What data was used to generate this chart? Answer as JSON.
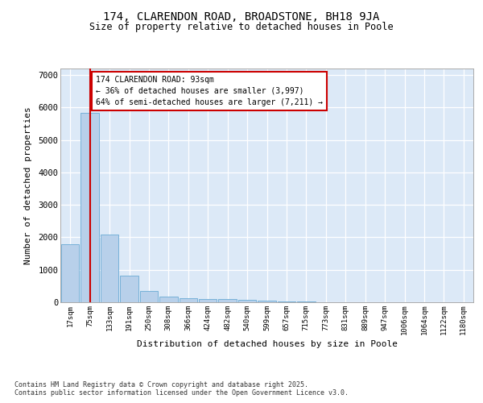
{
  "title_line1": "174, CLARENDON ROAD, BROADSTONE, BH18 9JA",
  "title_line2": "Size of property relative to detached houses in Poole",
  "xlabel": "Distribution of detached houses by size in Poole",
  "ylabel": "Number of detached properties",
  "categories": [
    "17sqm",
    "75sqm",
    "133sqm",
    "191sqm",
    "250sqm",
    "308sqm",
    "366sqm",
    "424sqm",
    "482sqm",
    "540sqm",
    "599sqm",
    "657sqm",
    "715sqm",
    "773sqm",
    "831sqm",
    "889sqm",
    "947sqm",
    "1006sqm",
    "1064sqm",
    "1122sqm",
    "1180sqm"
  ],
  "values": [
    1780,
    5840,
    2080,
    820,
    340,
    185,
    120,
    100,
    90,
    65,
    45,
    30,
    20,
    10,
    6,
    4,
    2,
    1,
    1,
    0,
    0
  ],
  "bar_color": "#b8d0ea",
  "bar_edge_color": "#6aaad4",
  "background_color": "#dce9f7",
  "grid_color": "#ffffff",
  "vline_index": 1,
  "vline_color": "#cc0000",
  "annotation_text": "174 CLARENDON ROAD: 93sqm\n← 36% of detached houses are smaller (3,997)\n64% of semi-detached houses are larger (7,211) →",
  "annotation_box_edgecolor": "#cc0000",
  "annotation_box_facecolor": "#ffffff",
  "ylim": [
    0,
    7200
  ],
  "yticks": [
    0,
    1000,
    2000,
    3000,
    4000,
    5000,
    6000,
    7000
  ],
  "fig_facecolor": "#ffffff",
  "footer_line1": "Contains HM Land Registry data © Crown copyright and database right 2025.",
  "footer_line2": "Contains public sector information licensed under the Open Government Licence v3.0."
}
